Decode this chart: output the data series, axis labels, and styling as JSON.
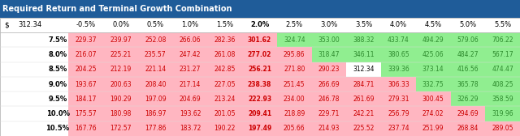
{
  "title": "Required Return and Terminal Growth Combination",
  "title_bg": "#1F5C99",
  "title_color": "#FFFFFF",
  "header_label_left": "$",
  "header_value": "312.34",
  "col_headers": [
    "-0.5%",
    "0.0%",
    "0.5%",
    "1.0%",
    "1.5%",
    "2.0%",
    "2.5%",
    "3.0%",
    "3.5%",
    "4.0%",
    "4.5%",
    "5.0%",
    "5.5%"
  ],
  "row_headers": [
    "7.5%",
    "8.0%",
    "8.5%",
    "9.0%",
    "9.5%",
    "10.0%",
    "10.5%"
  ],
  "table_data": [
    [
      229.37,
      239.97,
      252.08,
      266.06,
      282.36,
      301.62,
      324.74,
      353.0,
      388.32,
      433.74,
      494.29,
      579.06,
      706.22
    ],
    [
      216.07,
      225.21,
      235.57,
      247.42,
      261.08,
      277.02,
      295.86,
      318.47,
      346.11,
      380.65,
      425.06,
      484.27,
      567.17
    ],
    [
      204.25,
      212.19,
      221.14,
      231.27,
      242.85,
      256.21,
      271.8,
      290.23,
      312.34,
      339.36,
      373.14,
      416.56,
      474.47
    ],
    [
      193.67,
      200.63,
      208.4,
      217.14,
      227.05,
      238.38,
      251.45,
      266.69,
      284.71,
      306.33,
      332.75,
      365.78,
      408.25
    ],
    [
      184.17,
      190.29,
      197.09,
      204.69,
      213.24,
      222.93,
      234.0,
      246.78,
      261.69,
      279.31,
      300.45,
      326.29,
      358.59
    ],
    [
      175.57,
      180.98,
      186.97,
      193.62,
      201.05,
      209.41,
      218.89,
      229.71,
      242.21,
      256.79,
      274.02,
      294.69,
      319.96
    ],
    [
      167.76,
      172.57,
      177.86,
      183.72,
      190.22,
      197.49,
      205.66,
      214.93,
      225.52,
      237.74,
      251.99,
      268.84,
      289.05
    ]
  ],
  "threshold": 312.34,
  "color_above": "#90EE90",
  "color_below": "#FFB6C1",
  "color_equal": "#FFFFFF",
  "text_above": "#2E8B2E",
  "text_below": "#CC0000",
  "text_equal": "#000000",
  "bold_col_header": "2.0%"
}
